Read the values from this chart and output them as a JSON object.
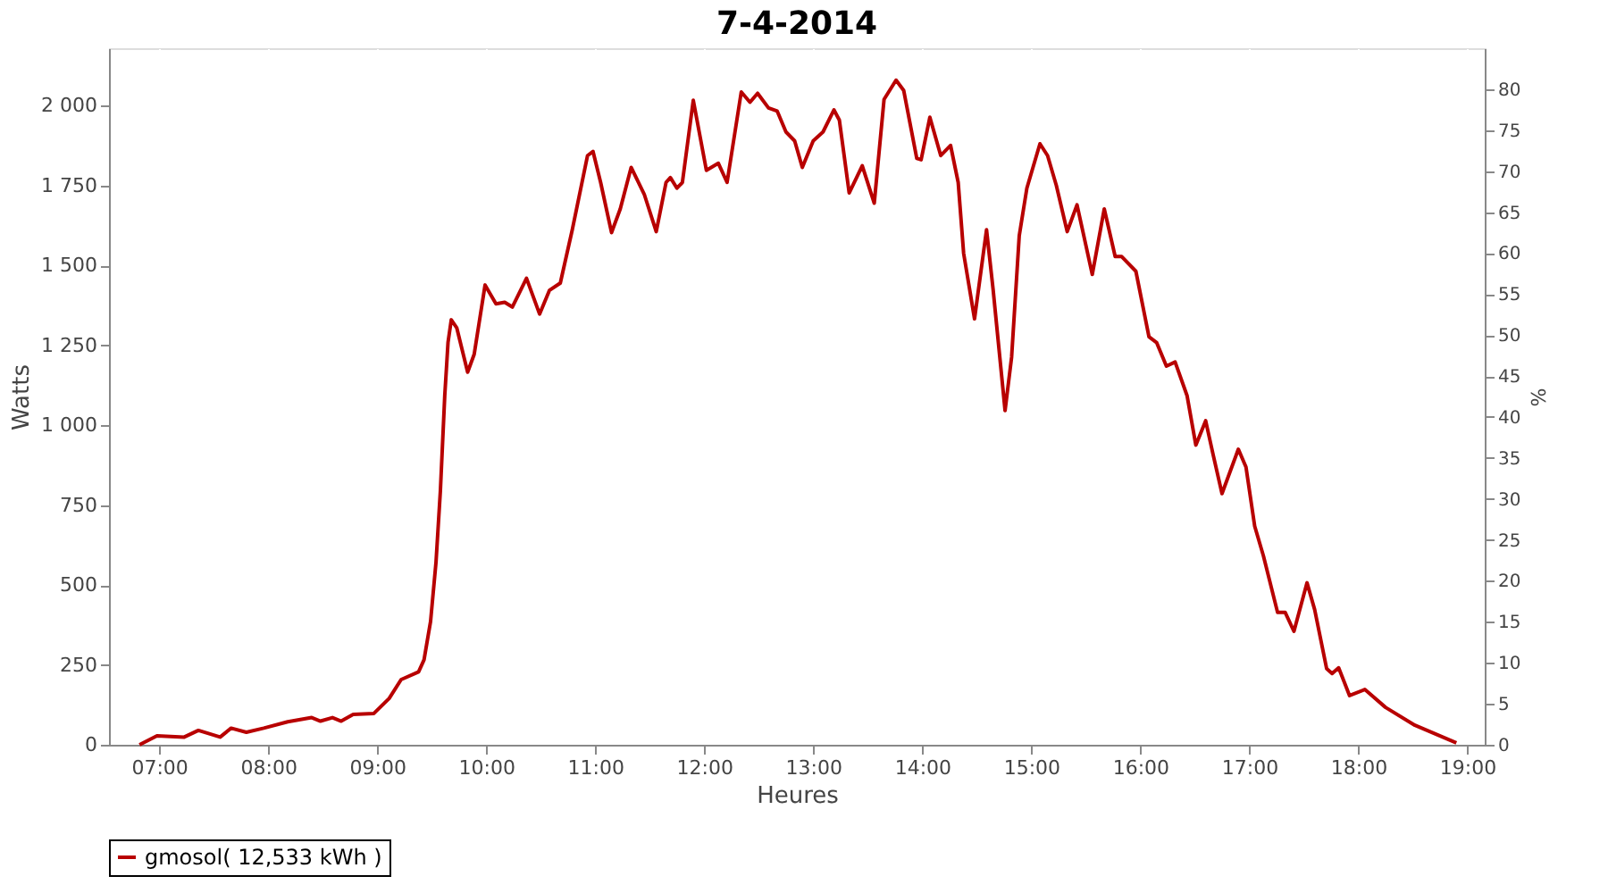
{
  "chart_data": {
    "type": "line",
    "title": "7-4-2014",
    "xlabel": "Heures",
    "ylabel": "Watts",
    "y2label": "%",
    "xlim": [
      6.54,
      19.16
    ],
    "ylim": [
      0,
      2180
    ],
    "y2lim": [
      0,
      85
    ],
    "xticks": [
      {
        "value": 7,
        "label": "07:00"
      },
      {
        "value": 8,
        "label": "08:00"
      },
      {
        "value": 9,
        "label": "09:00"
      },
      {
        "value": 10,
        "label": "10:00"
      },
      {
        "value": 11,
        "label": "11:00"
      },
      {
        "value": 12,
        "label": "12:00"
      },
      {
        "value": 13,
        "label": "13:00"
      },
      {
        "value": 14,
        "label": "14:00"
      },
      {
        "value": 15,
        "label": "15:00"
      },
      {
        "value": 16,
        "label": "16:00"
      },
      {
        "value": 17,
        "label": "17:00"
      },
      {
        "value": 18,
        "label": "18:00"
      },
      {
        "value": 19,
        "label": "19:00"
      }
    ],
    "yticks": [
      0,
      250,
      500,
      750,
      {
        "value": 1000,
        "label": "1 000"
      },
      {
        "value": 1250,
        "label": "1 250"
      },
      {
        "value": 1500,
        "label": "1 500"
      },
      {
        "value": 1750,
        "label": "1 750"
      },
      {
        "value": 2000,
        "label": "2 000"
      }
    ],
    "y2ticks": [
      0,
      5,
      10,
      15,
      20,
      25,
      30,
      35,
      40,
      45,
      50,
      55,
      60,
      65,
      70,
      75,
      80
    ],
    "grid": true,
    "legend": "bottom",
    "line_style": "solid",
    "series": [
      {
        "name": "gmosol( 12,533 kWh )",
        "color": "#b80000",
        "x": [
          6.82,
          6.98,
          7.23,
          7.36,
          7.56,
          7.66,
          7.8,
          7.96,
          8.18,
          8.4,
          8.48,
          8.59,
          8.67,
          8.78,
          8.97,
          9.11,
          9.22,
          9.38,
          9.43,
          9.49,
          9.54,
          9.58,
          9.62,
          9.65,
          9.68,
          9.73,
          9.83,
          9.89,
          9.99,
          10.09,
          10.17,
          10.24,
          10.37,
          10.49,
          10.58,
          10.68,
          10.79,
          10.93,
          10.98,
          11.05,
          11.15,
          11.23,
          11.33,
          11.45,
          11.56,
          11.65,
          11.69,
          11.75,
          11.8,
          11.9,
          12.02,
          12.13,
          12.21,
          12.34,
          12.42,
          12.49,
          12.59,
          12.67,
          12.75,
          12.83,
          12.9,
          13.0,
          13.09,
          13.19,
          13.24,
          13.33,
          13.45,
          13.56,
          13.65,
          13.76,
          13.83,
          13.95,
          13.99,
          14.07,
          14.17,
          14.26,
          14.33,
          14.38,
          14.48,
          14.59,
          14.65,
          14.76,
          14.82,
          14.89,
          14.96,
          15.08,
          15.15,
          15.23,
          15.33,
          15.42,
          15.56,
          15.67,
          15.77,
          15.83,
          15.96,
          16.08,
          16.15,
          16.24,
          16.32,
          16.43,
          16.51,
          16.6,
          16.67,
          16.75,
          16.9,
          16.97,
          17.05,
          17.13,
          17.26,
          17.33,
          17.41,
          17.53,
          17.6,
          17.71,
          17.76,
          17.82,
          17.92,
          18.06,
          18.25,
          18.52,
          18.9
        ],
        "values": [
          0,
          28,
          24,
          45,
          24,
          52,
          39,
          52,
          72,
          85,
          74,
          85,
          74,
          95,
          98,
          145,
          204,
          228,
          266,
          386,
          572,
          795,
          1092,
          1259,
          1330,
          1305,
          1166,
          1222,
          1439,
          1380,
          1385,
          1370,
          1460,
          1348,
          1422,
          1445,
          1612,
          1844,
          1857,
          1760,
          1603,
          1677,
          1807,
          1723,
          1606,
          1760,
          1775,
          1742,
          1760,
          2017,
          1798,
          1820,
          1760,
          2043,
          2011,
          2039,
          1993,
          1983,
          1918,
          1890,
          1807,
          1890,
          1918,
          1987,
          1955,
          1727,
          1812,
          1695,
          2020,
          2080,
          2048,
          1835,
          1831,
          1964,
          1844,
          1876,
          1760,
          1538,
          1333,
          1612,
          1426,
          1046,
          1213,
          1593,
          1742,
          1881,
          1844,
          1751,
          1606,
          1690,
          1472,
          1677,
          1528,
          1528,
          1482,
          1277,
          1259,
          1185,
          1198,
          1092,
          938,
          1014,
          906,
          786,
          925,
          869,
          684,
          591,
          414,
          414,
          355,
          507,
          423,
          238,
          223,
          241,
          154,
          173,
          117,
          61,
          6
        ]
      }
    ]
  }
}
